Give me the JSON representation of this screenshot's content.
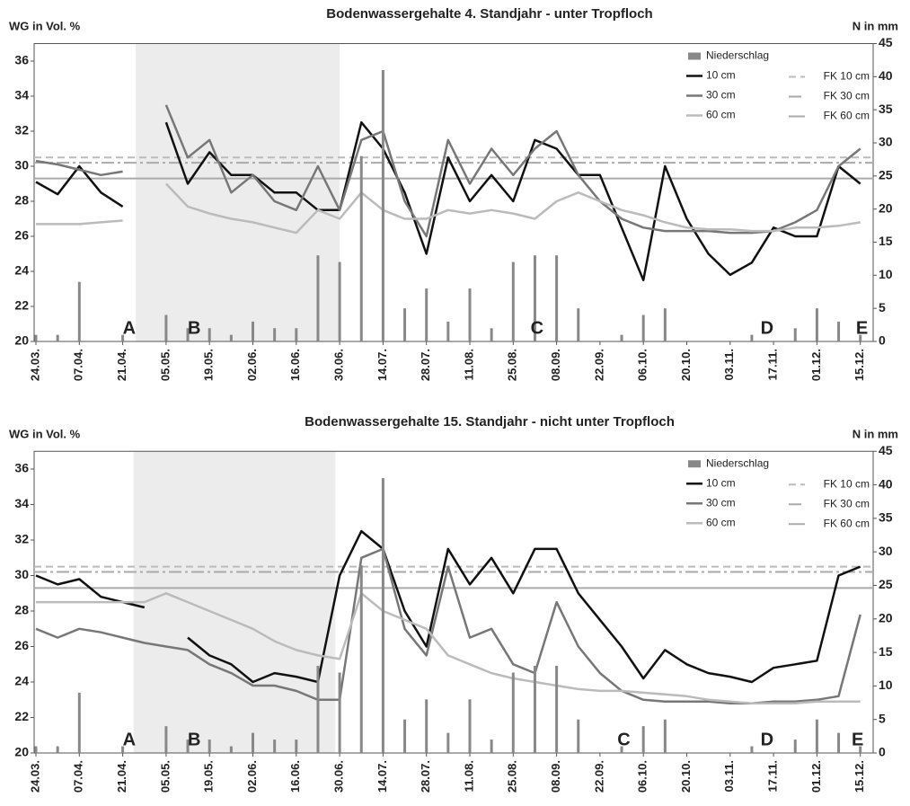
{
  "chart_data": [
    {
      "type": "line",
      "title": "Bodenwassergehalte 4. Standjahr - unter Tropfloch",
      "ylabel": "WG in Vol. %",
      "y2label": "N in mm",
      "categories": [
        "24.03.",
        null,
        "07.04.",
        null,
        "21.04.",
        null,
        "05.05.",
        null,
        "19.05.",
        null,
        "02.06.",
        null,
        "16.06.",
        null,
        "30.06.",
        null,
        "14.07.",
        null,
        "28.07.",
        null,
        "11.08.",
        null,
        "25.08.",
        null,
        "08.09.",
        null,
        "22.09.",
        null,
        "06.10.",
        null,
        "20.10.",
        null,
        "03.11.",
        null,
        "17.11.",
        null,
        "01.12.",
        null,
        "15.12."
      ],
      "ylim": [
        20,
        37
      ],
      "yticks": [
        20,
        22,
        24,
        26,
        28,
        30,
        32,
        34,
        36
      ],
      "y2lim": [
        0,
        45
      ],
      "y2ticks": [
        0,
        5,
        10,
        15,
        20,
        25,
        30,
        35,
        40,
        45
      ],
      "series": [
        {
          "name": "10 cm",
          "color": "#111111",
          "values": [
            29.1,
            28.4,
            30.0,
            28.5,
            27.7,
            null,
            32.5,
            29.0,
            30.8,
            29.5,
            29.5,
            28.5,
            28.5,
            27.5,
            27.5,
            32.5,
            31.0,
            28.5,
            25.0,
            30.5,
            28.0,
            29.5,
            28.0,
            31.5,
            31.0,
            29.5,
            29.5,
            26.5,
            23.5,
            30.0,
            27.0,
            25.0,
            23.8,
            24.5,
            26.5,
            26.0,
            26.0,
            30.0,
            29.0
          ]
        },
        {
          "name": "30 cm",
          "color": "#777777",
          "values": [
            30.3,
            30.1,
            29.8,
            29.5,
            29.7,
            null,
            33.5,
            30.5,
            31.5,
            28.5,
            29.5,
            28.0,
            27.5,
            30.0,
            27.5,
            31.5,
            32.0,
            28.0,
            26.0,
            31.5,
            29.0,
            31.0,
            29.5,
            31.0,
            32.0,
            29.5,
            28.0,
            27.0,
            26.5,
            26.3,
            26.3,
            26.3,
            26.2,
            26.2,
            26.3,
            26.8,
            27.5,
            30.0,
            31.0
          ]
        },
        {
          "name": "60 cm",
          "color": "#bbbbbb",
          "values": [
            26.7,
            26.7,
            26.7,
            26.8,
            26.9,
            null,
            29.0,
            27.7,
            27.3,
            27.0,
            26.8,
            26.5,
            26.2,
            27.5,
            27.0,
            28.5,
            27.5,
            27.0,
            27.0,
            27.5,
            27.3,
            27.5,
            27.3,
            27.0,
            28.0,
            28.5,
            28.0,
            27.5,
            27.2,
            26.8,
            26.5,
            26.4,
            26.4,
            26.3,
            26.3,
            26.5,
            26.5,
            26.6,
            26.8
          ]
        },
        {
          "name": "Niederschlag",
          "type": "bar",
          "axis": "y2",
          "color": "#888888",
          "values": [
            1,
            1,
            9,
            0,
            1,
            0,
            4,
            2,
            2,
            1,
            3,
            2,
            2,
            13,
            12,
            28,
            41,
            5,
            8,
            3,
            8,
            2,
            12,
            13,
            13,
            5,
            0,
            1,
            4,
            5,
            0,
            0,
            0,
            1,
            0,
            2,
            5,
            3,
            1
          ]
        }
      ],
      "reference_lines": [
        {
          "name": "FK 10 cm",
          "value": 30.5,
          "color": "#bbbbbb",
          "dash": "dashed"
        },
        {
          "name": "FK 30 cm",
          "value": 30.2,
          "color": "#aaaaaa",
          "dash": "dashdot"
        },
        {
          "name": "FK 60 cm",
          "value": 29.3,
          "color": "#aaaaaa",
          "dash": "solid"
        }
      ],
      "annotations": [
        "A",
        "B",
        "C",
        "D",
        "E"
      ]
    },
    {
      "type": "line",
      "title": "Bodenwassergehalte 15. Standjahr - nicht unter Tropfloch",
      "ylabel": "WG in Vol. %",
      "y2label": "N in mm",
      "categories": [
        "24.03.",
        null,
        "07.04.",
        null,
        "21.04.",
        null,
        "05.05.",
        null,
        "19.05.",
        null,
        "02.06.",
        null,
        "16.06.",
        null,
        "30.06.",
        null,
        "14.07.",
        null,
        "28.07.",
        null,
        "11.08.",
        null,
        "25.08.",
        null,
        "08.09.",
        null,
        "22.09.",
        null,
        "06.10.",
        null,
        "20.10.",
        null,
        "03.11.",
        null,
        "17.11.",
        null,
        "01.12.",
        null,
        "15.12."
      ],
      "ylim": [
        20,
        37
      ],
      "yticks": [
        20,
        22,
        24,
        26,
        28,
        30,
        32,
        34,
        36
      ],
      "y2lim": [
        0,
        45
      ],
      "y2ticks": [
        0,
        5,
        10,
        15,
        20,
        25,
        30,
        35,
        40,
        45
      ],
      "series": [
        {
          "name": "10 cm",
          "color": "#111111",
          "values": [
            30.0,
            29.5,
            29.8,
            28.8,
            28.5,
            28.2,
            null,
            26.5,
            25.5,
            25.0,
            24.0,
            24.5,
            24.3,
            24.0,
            30.0,
            32.5,
            31.5,
            28.0,
            26.0,
            31.5,
            29.5,
            31.0,
            29.0,
            31.5,
            31.5,
            29.0,
            27.5,
            26.0,
            24.2,
            25.8,
            25.0,
            24.5,
            24.3,
            24.0,
            24.8,
            25.0,
            25.2,
            30.0,
            30.5
          ]
        },
        {
          "name": "30 cm",
          "color": "#777777",
          "values": [
            27.0,
            26.5,
            27.0,
            26.8,
            26.5,
            26.2,
            26.0,
            25.8,
            25.0,
            24.5,
            23.8,
            23.8,
            23.5,
            23.0,
            23.0,
            31.0,
            31.5,
            27.0,
            25.5,
            30.5,
            26.5,
            27.0,
            25.0,
            24.5,
            28.5,
            26.0,
            24.5,
            23.5,
            23.0,
            22.9,
            22.9,
            22.9,
            22.8,
            22.8,
            22.9,
            22.9,
            23.0,
            23.2,
            27.8
          ]
        },
        {
          "name": "60 cm",
          "color": "#bbbbbb",
          "values": [
            28.5,
            28.5,
            28.5,
            28.5,
            28.5,
            28.5,
            29.0,
            28.5,
            28.0,
            27.5,
            27.0,
            26.3,
            25.8,
            25.5,
            25.3,
            29.0,
            28.0,
            27.5,
            27.0,
            25.5,
            25.0,
            24.5,
            24.2,
            24.0,
            23.8,
            23.6,
            23.5,
            23.5,
            23.4,
            23.3,
            23.2,
            23.0,
            22.9,
            22.8,
            22.8,
            22.8,
            22.9,
            22.9,
            22.9
          ]
        },
        {
          "name": "Niederschlag",
          "type": "bar",
          "axis": "y2",
          "color": "#888888",
          "values": [
            1,
            1,
            9,
            0,
            1,
            0,
            4,
            2,
            2,
            1,
            3,
            2,
            2,
            13,
            12,
            28,
            41,
            5,
            8,
            3,
            8,
            2,
            12,
            13,
            13,
            5,
            0,
            1,
            4,
            5,
            0,
            0,
            0,
            1,
            0,
            2,
            5,
            3,
            1
          ]
        }
      ],
      "reference_lines": [
        {
          "name": "FK 10 cm",
          "value": 30.5,
          "color": "#bbbbbb",
          "dash": "dashed"
        },
        {
          "name": "FK 30 cm",
          "value": 30.2,
          "color": "#aaaaaa",
          "dash": "dashdot"
        },
        {
          "name": "FK 60 cm",
          "value": 29.3,
          "color": "#aaaaaa",
          "dash": "solid"
        }
      ],
      "annotations": [
        "A",
        "B",
        "C",
        "D",
        "E"
      ]
    }
  ]
}
